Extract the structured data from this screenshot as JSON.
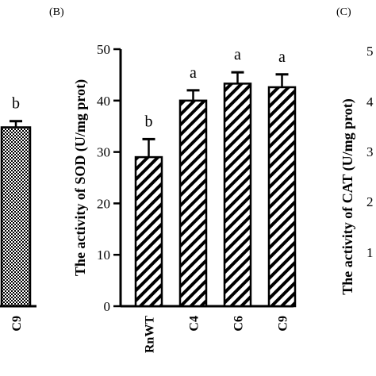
{
  "panels": {
    "left_partial": {
      "category": "C9",
      "value": 34.8,
      "error": 1.2,
      "sig": "b",
      "ylim": [
        0,
        50
      ]
    },
    "b": {
      "label": "(B)",
      "ylabel": "The activity of SOD (U/mg prot)"
    },
    "c": {
      "label": "(C)",
      "ylabel": "The activity of CAT (U/mg prot)",
      "tick_labels": [
        "1",
        "2",
        "3",
        "4",
        "5"
      ]
    }
  },
  "chart_data": [
    {
      "type": "bar",
      "panel": "B",
      "title": "",
      "xlabel": "",
      "ylabel": "The activity of SOD (U/mg prot)",
      "categories": [
        "RnWT",
        "C4",
        "C6",
        "C9"
      ],
      "values": [
        29,
        40,
        43.3,
        42.6
      ],
      "errors": [
        3.5,
        2,
        2.2,
        2.5
      ],
      "significance": [
        "b",
        "a",
        "a",
        "a"
      ],
      "ylim": [
        0,
        50
      ],
      "yticks": [
        0,
        10,
        20,
        30,
        40,
        50
      ],
      "grid": false,
      "fill": "diagonal-hatch",
      "colors": {
        "stroke": "#000000",
        "fill": "#ffffff"
      }
    }
  ]
}
